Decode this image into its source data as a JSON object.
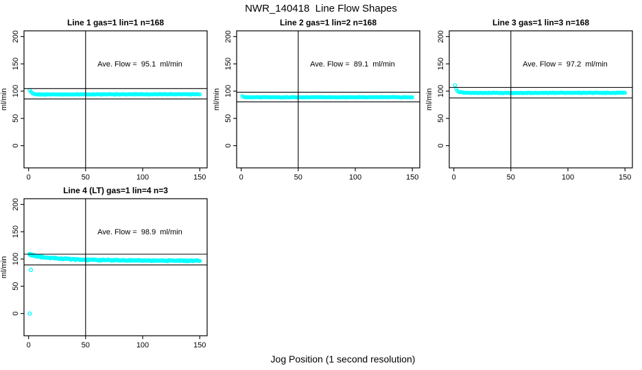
{
  "chart_data": {
    "type": "scatter",
    "title": "NWR_140418  Line Flow Shapes",
    "xlabel": "Jog Position (1 second resolution)",
    "ylabel": "ml/min",
    "x_ticks": [
      0,
      50,
      100,
      150
    ],
    "y_ticks": [
      0,
      50,
      100,
      150,
      200
    ],
    "xlim": [
      -4,
      156.5
    ],
    "ylim": [
      -40.7,
      210.5
    ],
    "grid": false,
    "marker": {
      "shape": "open-circle",
      "color": "#00ffff"
    },
    "panels": [
      {
        "title": "Line 1 gas=1 lin=1 n=168",
        "annotation": "Ave. Flow =  95.1  ml/min",
        "ave_flow": 95.1,
        "ref_lines": {
          "upper": 104.6,
          "lower": 85.6,
          "vertical_x": 50
        },
        "series_profile": [
          [
            1,
            101.5
          ],
          [
            2,
            98.6
          ],
          [
            3,
            96.9
          ],
          [
            4,
            95.7
          ],
          [
            5,
            94.9
          ],
          [
            7,
            94.3
          ],
          [
            10,
            94.0
          ],
          [
            20,
            93.9
          ],
          [
            40,
            94.0
          ],
          [
            80,
            94.2
          ],
          [
            120,
            94.3
          ],
          [
            150,
            94.3
          ]
        ],
        "noise": 0.7,
        "overplot_passes": 1,
        "outliers": []
      },
      {
        "title": "Line 2 gas=1 lin=2 n=168",
        "annotation": "Ave. Flow =  89.1  ml/min",
        "ave_flow": 89.1,
        "ref_lines": {
          "upper": 98.0,
          "lower": 80.2,
          "vertical_x": 50
        },
        "series_profile": [
          [
            1,
            90.8
          ],
          [
            2,
            89.7
          ],
          [
            3,
            89.2
          ],
          [
            5,
            88.9
          ],
          [
            10,
            88.8
          ],
          [
            50,
            88.7
          ],
          [
            100,
            88.8
          ],
          [
            150,
            88.8
          ]
        ],
        "noise": 0.6,
        "overplot_passes": 1,
        "outliers": []
      },
      {
        "title": "Line 3 gas=1 lin=3 n=168",
        "annotation": "Ave. Flow =  97.2  ml/min",
        "ave_flow": 97.2,
        "ref_lines": {
          "upper": 106.9,
          "lower": 87.5,
          "vertical_x": 50
        },
        "series_profile": [
          [
            1,
            111.0
          ],
          [
            2,
            104.5
          ],
          [
            3,
            100.6
          ],
          [
            4,
            98.9
          ],
          [
            5,
            98.1
          ],
          [
            8,
            97.3
          ],
          [
            15,
            96.8
          ],
          [
            50,
            96.7
          ],
          [
            100,
            96.9
          ],
          [
            150,
            96.9
          ]
        ],
        "noise": 0.7,
        "overplot_passes": 1,
        "outliers": []
      },
      {
        "title": "Line 4 (LT) gas=1 lin=4 n=3",
        "annotation": "Ave. Flow =  98.9  ml/min",
        "ave_flow": 98.9,
        "ref_lines": {
          "upper": 108.8,
          "lower": 89.0,
          "vertical_x": 50
        },
        "series_profile": [
          [
            1,
            108.5
          ],
          [
            3,
            107.2
          ],
          [
            6,
            105.6
          ],
          [
            10,
            104.2
          ],
          [
            15,
            102.7
          ],
          [
            20,
            101.6
          ],
          [
            25,
            100.9
          ],
          [
            30,
            100.3
          ],
          [
            40,
            99.3
          ],
          [
            50,
            98.7
          ],
          [
            60,
            98.2
          ],
          [
            80,
            97.6
          ],
          [
            100,
            97.2
          ],
          [
            125,
            97.0
          ],
          [
            150,
            96.8
          ]
        ],
        "noise": 1.4,
        "overplot_passes": 2,
        "outliers": [
          [
            1,
            0
          ],
          [
            2,
            80
          ]
        ]
      }
    ]
  }
}
